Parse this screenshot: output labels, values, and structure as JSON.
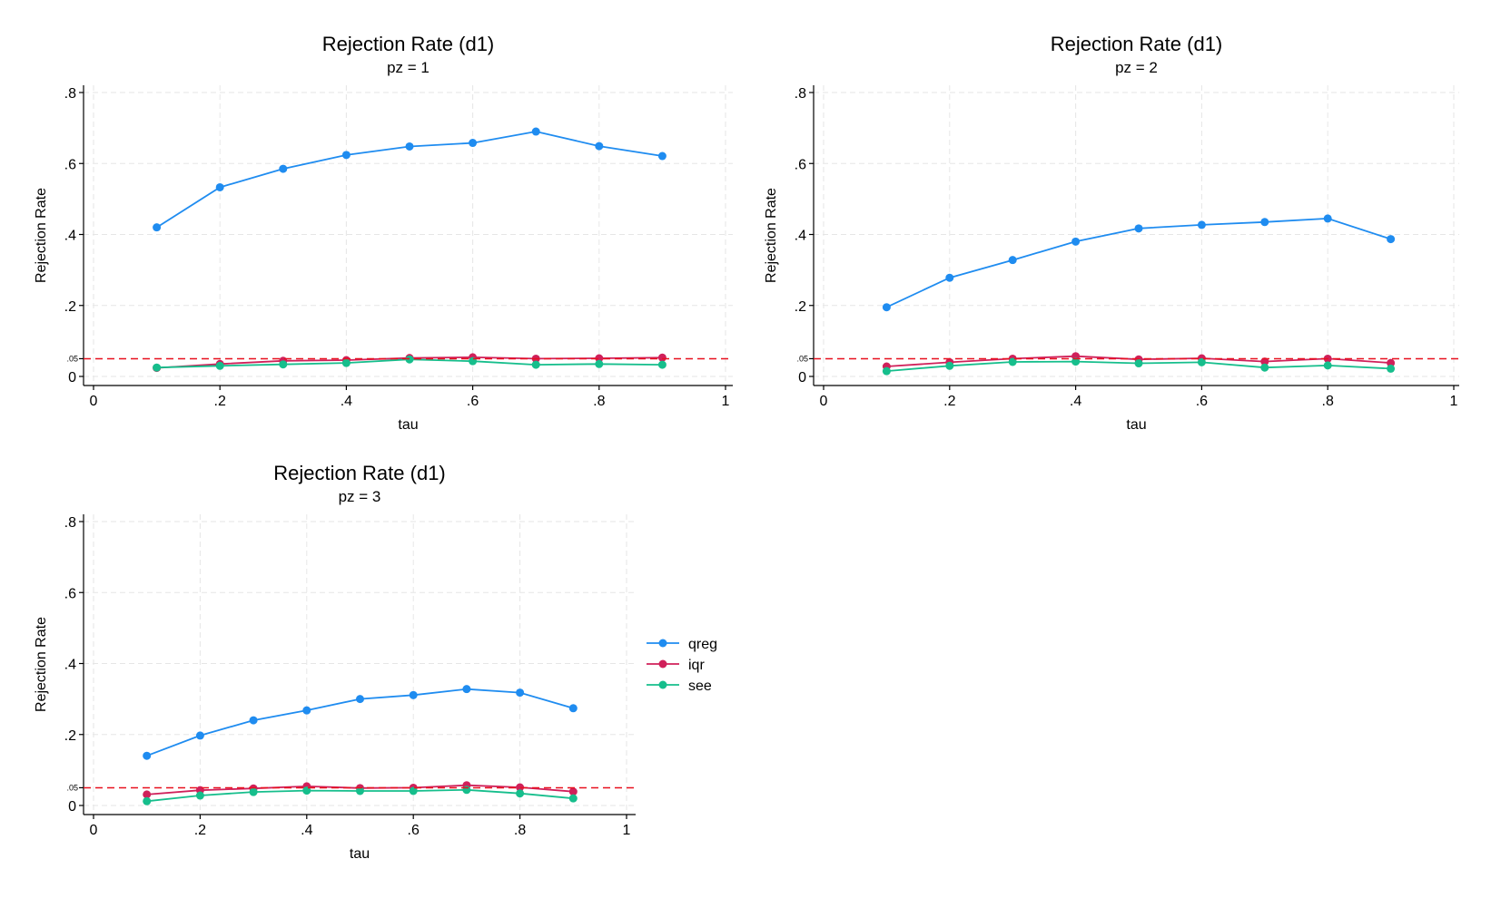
{
  "colors": {
    "qreg": "#1f8cf0",
    "iqr": "#d0205a",
    "see": "#16be8c",
    "refline": "#e8101e"
  },
  "legend": {
    "placement": "right",
    "items": [
      {
        "label": "qreg",
        "color": "#1f8cf0"
      },
      {
        "label": "iqr",
        "color": "#d0205a"
      },
      {
        "label": "see",
        "color": "#16be8c"
      }
    ]
  },
  "chart_data": [
    {
      "type": "line",
      "title": "Rejection Rate (d1)",
      "subtitle": "pz = 1",
      "xlabel": "tau",
      "ylabel": "Rejection Rate",
      "xlim": [
        0,
        1
      ],
      "ylim": [
        0,
        0.8
      ],
      "x_ticks": [
        "0",
        ".2",
        ".4",
        ".6",
        ".8",
        "1"
      ],
      "y_ticks": [
        ".8",
        ".6",
        ".4",
        ".2",
        "0"
      ],
      "reference_line": {
        "y": 0.05,
        "label": ".05"
      },
      "x": [
        0.1,
        0.2,
        0.3,
        0.4,
        0.5,
        0.6,
        0.7,
        0.8,
        0.9
      ],
      "series": [
        {
          "name": "qreg",
          "values": [
            0.42,
            0.533,
            0.585,
            0.624,
            0.648,
            0.658,
            0.69,
            0.649,
            0.621
          ]
        },
        {
          "name": "iqr",
          "values": [
            0.024,
            0.035,
            0.044,
            0.046,
            0.052,
            0.054,
            0.05,
            0.051,
            0.053
          ]
        },
        {
          "name": "see",
          "values": [
            0.025,
            0.03,
            0.034,
            0.038,
            0.048,
            0.043,
            0.033,
            0.035,
            0.033
          ]
        }
      ]
    },
    {
      "type": "line",
      "title": "Rejection Rate (d1)",
      "subtitle": "pz = 2",
      "xlabel": "tau",
      "ylabel": "Rejection Rate",
      "xlim": [
        0,
        1
      ],
      "ylim": [
        0,
        0.8
      ],
      "x_ticks": [
        "0",
        ".2",
        ".4",
        ".6",
        ".8",
        "1"
      ],
      "y_ticks": [
        ".8",
        ".6",
        ".4",
        ".2",
        "0"
      ],
      "reference_line": {
        "y": 0.05,
        "label": ".05"
      },
      "x": [
        0.1,
        0.2,
        0.3,
        0.4,
        0.5,
        0.6,
        0.7,
        0.8,
        0.9
      ],
      "series": [
        {
          "name": "qreg",
          "values": [
            0.195,
            0.278,
            0.328,
            0.38,
            0.417,
            0.427,
            0.435,
            0.445,
            0.387
          ]
        },
        {
          "name": "iqr",
          "values": [
            0.028,
            0.04,
            0.05,
            0.057,
            0.048,
            0.051,
            0.042,
            0.05,
            0.038
          ]
        },
        {
          "name": "see",
          "values": [
            0.015,
            0.03,
            0.041,
            0.042,
            0.037,
            0.04,
            0.025,
            0.031,
            0.022
          ]
        }
      ]
    },
    {
      "type": "line",
      "title": "Rejection Rate (d1)",
      "subtitle": "pz = 3",
      "xlabel": "tau",
      "ylabel": "Rejection Rate",
      "xlim": [
        0,
        1
      ],
      "ylim": [
        0,
        0.8
      ],
      "x_ticks": [
        "0",
        ".2",
        ".4",
        ".6",
        ".8",
        "1"
      ],
      "y_ticks": [
        ".8",
        ".6",
        ".4",
        ".2",
        "0"
      ],
      "reference_line": {
        "y": 0.05,
        "label": ".05"
      },
      "x": [
        0.1,
        0.2,
        0.3,
        0.4,
        0.5,
        0.6,
        0.7,
        0.8,
        0.9
      ],
      "series": [
        {
          "name": "qreg",
          "values": [
            0.14,
            0.197,
            0.24,
            0.268,
            0.3,
            0.311,
            0.328,
            0.318,
            0.274
          ]
        },
        {
          "name": "iqr",
          "values": [
            0.031,
            0.043,
            0.048,
            0.054,
            0.049,
            0.05,
            0.057,
            0.051,
            0.039
          ]
        },
        {
          "name": "see",
          "values": [
            0.012,
            0.028,
            0.038,
            0.042,
            0.041,
            0.041,
            0.044,
            0.034,
            0.02
          ]
        }
      ]
    }
  ]
}
